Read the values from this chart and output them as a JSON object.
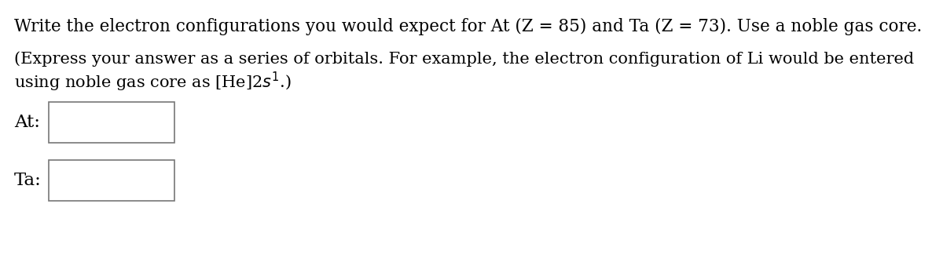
{
  "background_color": "#ffffff",
  "line1": "Write the electron configurations you would expect for At (Z = 85) and Ta (Z = 73). Use a noble gas core.",
  "line2": "(Express your answer as a series of orbitals. For example, the electron configuration of Li would be entered",
  "line3": "using noble gas core as [He]2s",
  "line3_super": "1",
  "line3_end": ".)",
  "label_at": "At:",
  "label_ta": "Ta:",
  "title_fontsize": 15.5,
  "subtitle_fontsize": 15.0,
  "label_fontsize": 16.5,
  "font_family": "serif"
}
